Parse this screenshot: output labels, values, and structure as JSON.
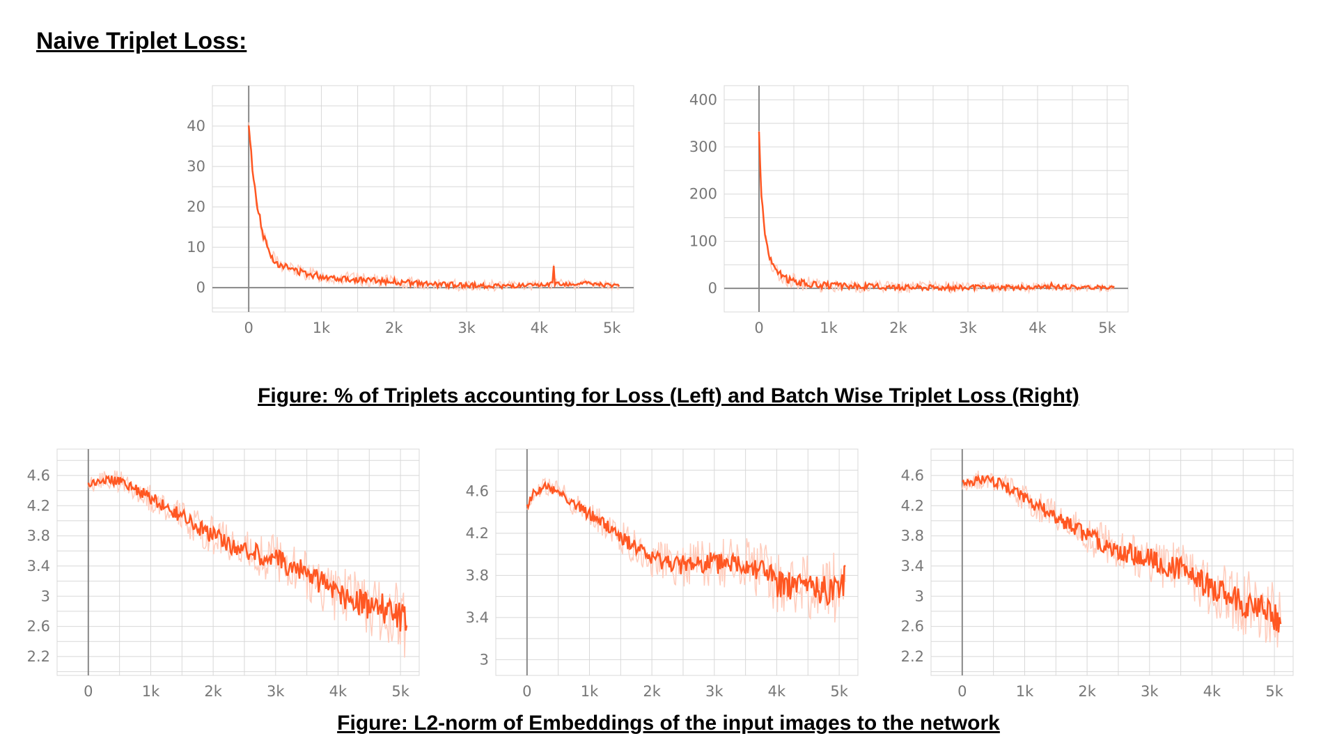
{
  "heading": "Naive Triplet Loss:",
  "captions": {
    "top": "Figure: % of Triplets accounting for Loss (Left) and Batch Wise Triplet Loss (Right)",
    "bottom": "Figure: L2-norm of Embeddings of the input images to the network"
  },
  "colors": {
    "series": "#ff5722",
    "series_light": "#ffccbc",
    "grid": "#d8d8d8",
    "axis": "#888888",
    "tick_text": "#777777"
  },
  "chart_data": [
    {
      "type": "line",
      "xlim": [
        -500,
        5300
      ],
      "ylim": [
        -6,
        50
      ],
      "x_ticks": [
        0,
        1000,
        2000,
        3000,
        4000,
        5000
      ],
      "x_tick_labels": [
        "0",
        "1k",
        "2k",
        "3k",
        "4k",
        "5k"
      ],
      "y_ticks": [
        0,
        10,
        20,
        30,
        40
      ],
      "y_tick_labels": [
        "0",
        "10",
        "20",
        "30",
        "40"
      ],
      "grid": true,
      "series": [
        {
          "x": [
            0,
            50,
            100,
            200,
            300,
            400,
            600,
            800,
            1000,
            1500,
            2000,
            2500,
            3000,
            3500,
            4000,
            4190,
            4200,
            4210,
            4500,
            4600,
            4800,
            5000,
            5100
          ],
          "y": [
            40,
            30,
            22,
            13,
            8,
            6,
            4.5,
            3.5,
            2.8,
            2,
            1.5,
            0.8,
            0.6,
            0.4,
            0.5,
            1,
            5.5,
            1,
            0.8,
            1.2,
            0.8,
            0.6,
            0.5
          ]
        }
      ]
    },
    {
      "type": "line",
      "xlim": [
        -500,
        5300
      ],
      "ylim": [
        -50,
        430
      ],
      "x_ticks": [
        0,
        1000,
        2000,
        3000,
        4000,
        5000
      ],
      "x_tick_labels": [
        "0",
        "1k",
        "2k",
        "3k",
        "4k",
        "5k"
      ],
      "y_ticks": [
        0,
        100,
        200,
        300,
        400
      ],
      "y_tick_labels": [
        "0",
        "100",
        "200",
        "300",
        "400"
      ],
      "grid": true,
      "series": [
        {
          "x": [
            0,
            30,
            80,
            150,
            250,
            400,
            600,
            800,
            1000,
            1500,
            2000,
            3000,
            4000,
            4190,
            4200,
            4210,
            5000,
            5100
          ],
          "y": [
            330,
            210,
            120,
            65,
            35,
            20,
            12,
            8,
            6,
            4,
            3,
            2,
            2,
            3,
            15,
            3,
            2,
            2
          ]
        }
      ]
    },
    {
      "type": "line",
      "xlim": [
        -500,
        5300
      ],
      "ylim": [
        1.95,
        4.95
      ],
      "x_ticks": [
        0,
        1000,
        2000,
        3000,
        4000,
        5000
      ],
      "x_tick_labels": [
        "0",
        "1k",
        "2k",
        "3k",
        "4k",
        "5k"
      ],
      "y_ticks": [
        2.2,
        2.6,
        3,
        3.4,
        3.8,
        4.2,
        4.6
      ],
      "y_tick_labels": [
        "2.2",
        "2.6",
        "3",
        "3.4",
        "3.8",
        "4.2",
        "4.6"
      ],
      "grid": true,
      "series": [
        {
          "x": [
            0,
            150,
            300,
            600,
            1000,
            1500,
            2000,
            2500,
            3000,
            3500,
            4000,
            4400,
            4700,
            4900,
            5000,
            5100
          ],
          "y": [
            4.48,
            4.52,
            4.55,
            4.5,
            4.3,
            4.05,
            3.8,
            3.6,
            3.5,
            3.3,
            3.05,
            2.9,
            2.85,
            2.8,
            2.7,
            2.65
          ]
        }
      ]
    },
    {
      "type": "line",
      "xlim": [
        -500,
        5300
      ],
      "ylim": [
        2.85,
        5.0
      ],
      "x_ticks": [
        0,
        1000,
        2000,
        3000,
        4000,
        5000
      ],
      "x_tick_labels": [
        "0",
        "1k",
        "2k",
        "3k",
        "4k",
        "5k"
      ],
      "y_ticks": [
        3,
        3.4,
        3.8,
        4.2,
        4.6
      ],
      "y_tick_labels": [
        "3",
        "3.4",
        "3.8",
        "4.2",
        "4.6"
      ],
      "grid": true,
      "series": [
        {
          "x": [
            0,
            100,
            300,
            500,
            800,
            1200,
            1600,
            2000,
            2500,
            3000,
            3500,
            3800,
            4000,
            4300,
            4600,
            4800,
            5000,
            5100
          ],
          "y": [
            4.45,
            4.58,
            4.64,
            4.6,
            4.45,
            4.3,
            4.12,
            3.95,
            3.9,
            3.92,
            3.9,
            3.85,
            3.72,
            3.7,
            3.68,
            3.65,
            3.7,
            3.75
          ]
        }
      ]
    },
    {
      "type": "line",
      "xlim": [
        -500,
        5300
      ],
      "ylim": [
        1.95,
        4.95
      ],
      "x_ticks": [
        0,
        1000,
        2000,
        3000,
        4000,
        5000
      ],
      "x_tick_labels": [
        "0",
        "1k",
        "2k",
        "3k",
        "4k",
        "5k"
      ],
      "y_ticks": [
        2.2,
        2.6,
        3,
        3.4,
        3.8,
        4.2,
        4.6
      ],
      "y_tick_labels": [
        "2.2",
        "2.6",
        "3",
        "3.4",
        "3.8",
        "4.2",
        "4.6"
      ],
      "grid": true,
      "series": [
        {
          "x": [
            0,
            150,
            300,
            600,
            1000,
            1500,
            2000,
            2500,
            3000,
            3500,
            4000,
            4400,
            4700,
            4900,
            5000,
            5100
          ],
          "y": [
            4.48,
            4.52,
            4.55,
            4.5,
            4.3,
            4.05,
            3.8,
            3.6,
            3.5,
            3.35,
            3.1,
            2.95,
            2.85,
            2.8,
            2.7,
            2.62
          ]
        }
      ]
    }
  ]
}
